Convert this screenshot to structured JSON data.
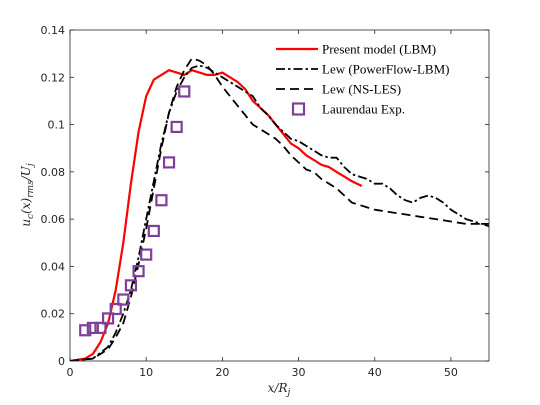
{
  "chart_data": {
    "type": "line",
    "xlabel": "x/R_j",
    "ylabel": "u_c(x)_rms/U_j",
    "xlim": [
      0,
      55
    ],
    "ylim": [
      0,
      0.14
    ],
    "xticks": [
      "0",
      "10",
      "20",
      "30",
      "40",
      "50"
    ],
    "yticks": [
      "0",
      "0.02",
      "0.04",
      "0.06",
      "0.08",
      "0.1",
      "0.12",
      "0.14"
    ],
    "grid": false,
    "legend_position": "top-right",
    "series": [
      {
        "name": "Present model (LBM)",
        "style": "solid",
        "color": "#ff0000",
        "x": [
          0,
          2,
          3,
          4,
          5,
          6,
          7,
          8,
          9,
          10,
          11,
          12,
          13,
          14,
          15,
          16,
          17,
          18,
          19,
          20,
          21,
          22,
          23,
          24,
          25,
          26,
          27,
          28,
          29,
          30,
          31,
          32,
          33,
          34,
          35,
          36,
          37,
          38.3
        ],
        "y": [
          0,
          0.001,
          0.003,
          0.008,
          0.016,
          0.03,
          0.05,
          0.075,
          0.097,
          0.112,
          0.119,
          0.121,
          0.123,
          0.122,
          0.121,
          0.123,
          0.122,
          0.121,
          0.121,
          0.122,
          0.12,
          0.118,
          0.115,
          0.11,
          0.107,
          0.104,
          0.1,
          0.096,
          0.092,
          0.09,
          0.087,
          0.085,
          0.083,
          0.082,
          0.08,
          0.078,
          0.076,
          0.074
        ]
      },
      {
        "name": "Lew (PowerFlow-LBM)",
        "style": "dashdot",
        "color": "#000000",
        "x": [
          0,
          3,
          5,
          6,
          7,
          8,
          9,
          10,
          11,
          12,
          13,
          14,
          15,
          16,
          17,
          18,
          19,
          20,
          21,
          22,
          23,
          24,
          25,
          26,
          27,
          28,
          29,
          30,
          31,
          32,
          33,
          34,
          35,
          36,
          37,
          38,
          39,
          40,
          41,
          42,
          43,
          44,
          45,
          46,
          47,
          48,
          49,
          50,
          51,
          52,
          53,
          54,
          55
        ],
        "y": [
          0,
          0.001,
          0.006,
          0.012,
          0.02,
          0.03,
          0.044,
          0.06,
          0.076,
          0.092,
          0.105,
          0.114,
          0.12,
          0.124,
          0.125,
          0.124,
          0.122,
          0.12,
          0.118,
          0.116,
          0.114,
          0.112,
          0.107,
          0.104,
          0.1,
          0.097,
          0.094,
          0.093,
          0.091,
          0.089,
          0.087,
          0.086,
          0.086,
          0.082,
          0.079,
          0.078,
          0.077,
          0.075,
          0.075,
          0.073,
          0.07,
          0.068,
          0.067,
          0.069,
          0.07,
          0.069,
          0.067,
          0.064,
          0.062,
          0.06,
          0.059,
          0.058,
          0.058
        ]
      },
      {
        "name": "Lew (NS-LES)",
        "style": "dashed",
        "color": "#000000",
        "x": [
          0,
          3,
          5,
          6,
          7,
          8,
          9,
          10,
          11,
          12,
          13,
          14,
          15,
          16,
          17,
          18,
          19,
          20,
          21,
          22,
          23,
          24,
          25,
          26,
          27,
          28,
          29,
          30,
          31,
          32,
          33,
          34,
          35,
          36,
          37,
          38,
          40,
          42,
          44,
          46,
          48,
          50,
          52,
          54,
          55
        ],
        "y": [
          0,
          0.001,
          0.005,
          0.01,
          0.016,
          0.027,
          0.041,
          0.056,
          0.073,
          0.09,
          0.105,
          0.116,
          0.123,
          0.128,
          0.127,
          0.125,
          0.121,
          0.116,
          0.112,
          0.108,
          0.104,
          0.1,
          0.098,
          0.096,
          0.094,
          0.091,
          0.087,
          0.084,
          0.081,
          0.08,
          0.077,
          0.075,
          0.073,
          0.07,
          0.067,
          0.066,
          0.064,
          0.063,
          0.062,
          0.061,
          0.06,
          0.059,
          0.058,
          0.058,
          0.057
        ]
      },
      {
        "name": "Laurendau Exp.",
        "style": "markers",
        "marker": "square",
        "color": "#7e3f98",
        "x": [
          2,
          3,
          4,
          5,
          6,
          7,
          8,
          9,
          10,
          11,
          12,
          13,
          14,
          15
        ],
        "y": [
          0.013,
          0.014,
          0.014,
          0.018,
          0.022,
          0.026,
          0.032,
          0.038,
          0.045,
          0.055,
          0.068,
          0.084,
          0.099,
          0.114
        ]
      }
    ]
  }
}
